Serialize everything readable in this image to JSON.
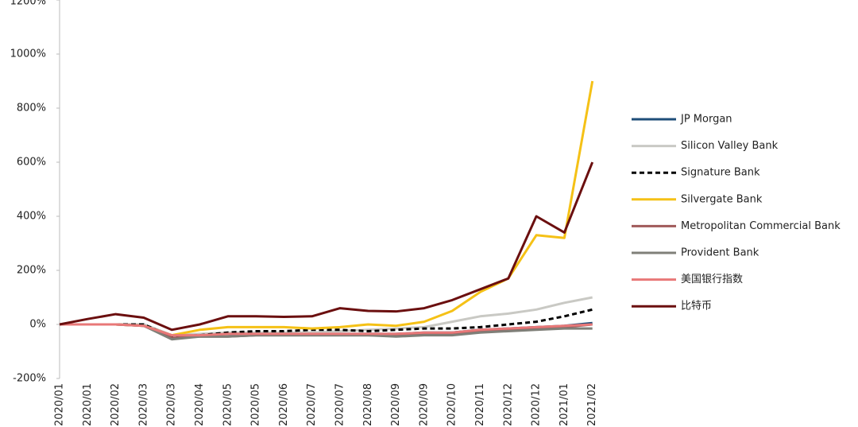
{
  "chart_data": {
    "type": "line",
    "categories": [
      "2020/01",
      "2020/01",
      "2020/02",
      "2020/03",
      "2020/03",
      "2020/04",
      "2020/05",
      "2020/05",
      "2020/06",
      "2020/07",
      "2020/07",
      "2020/08",
      "2020/09",
      "2020/09",
      "2020/10",
      "2020/11",
      "2020/12",
      "2020/12",
      "2021/01",
      "2021/02"
    ],
    "ylim": [
      -200,
      1200
    ],
    "yticks": [
      {
        "value": -200,
        "label": "-200%"
      },
      {
        "value": 0,
        "label": "0%"
      },
      {
        "value": 200,
        "label": "200%"
      },
      {
        "value": 400,
        "label": "400%"
      },
      {
        "value": 600,
        "label": "600%"
      },
      {
        "value": 800,
        "label": "800%"
      },
      {
        "value": 1000,
        "label": "1000%"
      },
      {
        "value": 1200,
        "label": "1200%"
      }
    ],
    "grid": false,
    "legend": "right",
    "series": [
      {
        "name": "JP Morgan",
        "color": "#1f4e79",
        "values": [
          0,
          0,
          0,
          0,
          -40,
          -40,
          -35,
          -35,
          -35,
          -35,
          -35,
          -35,
          -35,
          -30,
          -30,
          -20,
          -15,
          -10,
          -5,
          5
        ]
      },
      {
        "name": "Silicon Valley Bank",
        "color": "#c9c9c4",
        "values": [
          0,
          0,
          0,
          0,
          -40,
          -35,
          -30,
          -30,
          -30,
          -30,
          -25,
          -20,
          -15,
          -10,
          10,
          30,
          40,
          55,
          80,
          100
        ]
      },
      {
        "name": "Signature Bank",
        "color": "#000000",
        "dashed": true,
        "values": [
          0,
          0,
          0,
          0,
          -45,
          -40,
          -30,
          -25,
          -25,
          -20,
          -20,
          -25,
          -20,
          -15,
          -15,
          -10,
          0,
          10,
          30,
          55
        ]
      },
      {
        "name": "Silvergate Bank",
        "color": "#f5c116",
        "values": [
          0,
          0,
          0,
          -5,
          -40,
          -20,
          -10,
          -10,
          -10,
          -15,
          -10,
          0,
          -5,
          10,
          50,
          120,
          170,
          330,
          320,
          900
        ]
      },
      {
        "name": "Metropolitan Commercial Bank",
        "color": "#a05a5a",
        "values": [
          0,
          0,
          0,
          -5,
          -50,
          -45,
          -45,
          -40,
          -40,
          -40,
          -40,
          -40,
          -40,
          -35,
          -35,
          -25,
          -20,
          -15,
          -10,
          0
        ]
      },
      {
        "name": "Provident Bank",
        "color": "#7f7f78",
        "values": [
          0,
          0,
          0,
          -5,
          -55,
          -45,
          -45,
          -40,
          -40,
          -40,
          -40,
          -40,
          -45,
          -40,
          -40,
          -30,
          -25,
          -20,
          -15,
          -15
        ]
      },
      {
        "name": "美国银行指数",
        "color": "#e87878",
        "values": [
          0,
          0,
          0,
          -5,
          -40,
          -40,
          -35,
          -35,
          -35,
          -35,
          -35,
          -35,
          -35,
          -30,
          -30,
          -20,
          -15,
          -10,
          -5,
          0
        ]
      },
      {
        "name": "比特币",
        "color": "#6b0f0f",
        "values": [
          0,
          20,
          38,
          25,
          -20,
          0,
          30,
          30,
          28,
          30,
          60,
          50,
          48,
          60,
          90,
          130,
          170,
          400,
          340,
          600
        ]
      }
    ]
  }
}
